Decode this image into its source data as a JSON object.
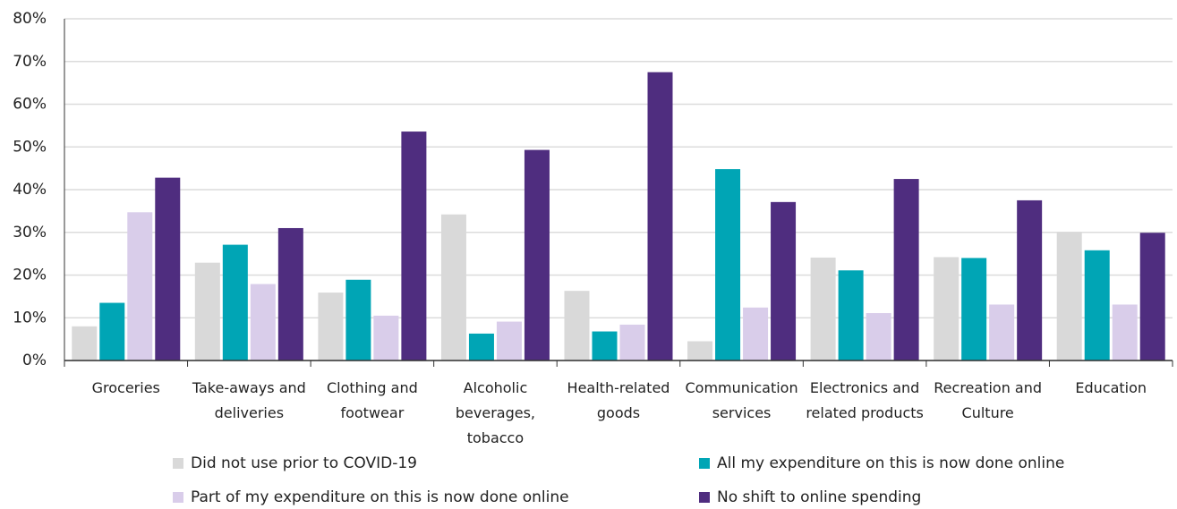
{
  "chart_data": {
    "type": "bar",
    "categories": [
      "Groceries",
      "Take-aways and\ndeliveries",
      "Clothing and\nfootwear",
      "Alcoholic\nbeverages,\ntobacco",
      "Health-related\ngoods",
      "Communication\nservices",
      "Electronics and\nrelated products",
      "Recreation and\nCulture",
      "Education"
    ],
    "series": [
      {
        "name": "Did not use prior to COVID-19",
        "color": "#d9d9d9",
        "values": [
          8.0,
          22.9,
          15.9,
          34.2,
          16.3,
          4.5,
          24.1,
          24.2,
          30.1
        ]
      },
      {
        "name": "All my expenditure on this is now done online",
        "color": "#00a5b5",
        "values": [
          13.5,
          27.1,
          18.9,
          6.3,
          6.8,
          44.8,
          21.1,
          24.0,
          25.8
        ]
      },
      {
        "name": "Part of my expenditure on this is now done online",
        "color": "#d9cdea",
        "values": [
          34.7,
          17.9,
          10.5,
          9.1,
          8.4,
          12.4,
          11.1,
          13.1,
          13.1
        ]
      },
      {
        "name": "No shift to online spending",
        "color": "#4f2d7f",
        "values": [
          42.8,
          31.0,
          53.6,
          49.3,
          67.5,
          37.1,
          42.5,
          37.5,
          29.9
        ]
      }
    ],
    "ylim": [
      0,
      80
    ],
    "yticks": [
      {
        "value": 0,
        "label": "0%"
      },
      {
        "value": 10,
        "label": "10%"
      },
      {
        "value": 20,
        "label": "20%"
      },
      {
        "value": 30,
        "label": "30%"
      },
      {
        "value": 40,
        "label": "40%"
      },
      {
        "value": 50,
        "label": "50%"
      },
      {
        "value": 60,
        "label": "60%"
      },
      {
        "value": 70,
        "label": "70%"
      },
      {
        "value": 80,
        "label": "80%"
      }
    ],
    "grid": true
  }
}
